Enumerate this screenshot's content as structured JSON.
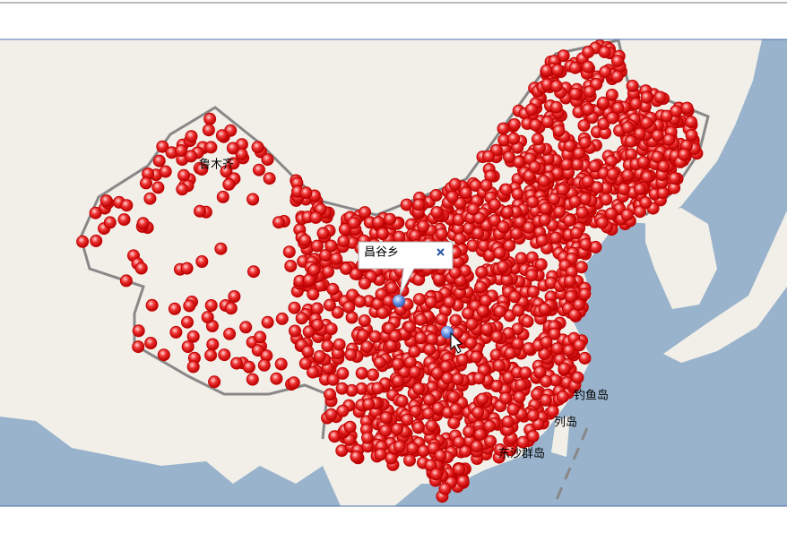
{
  "map": {
    "labels": [
      "鲁木齐",
      "钓鱼岛",
      "列岛",
      "东沙群岛"
    ],
    "popup": {
      "title": "昌谷乡"
    }
  }
}
